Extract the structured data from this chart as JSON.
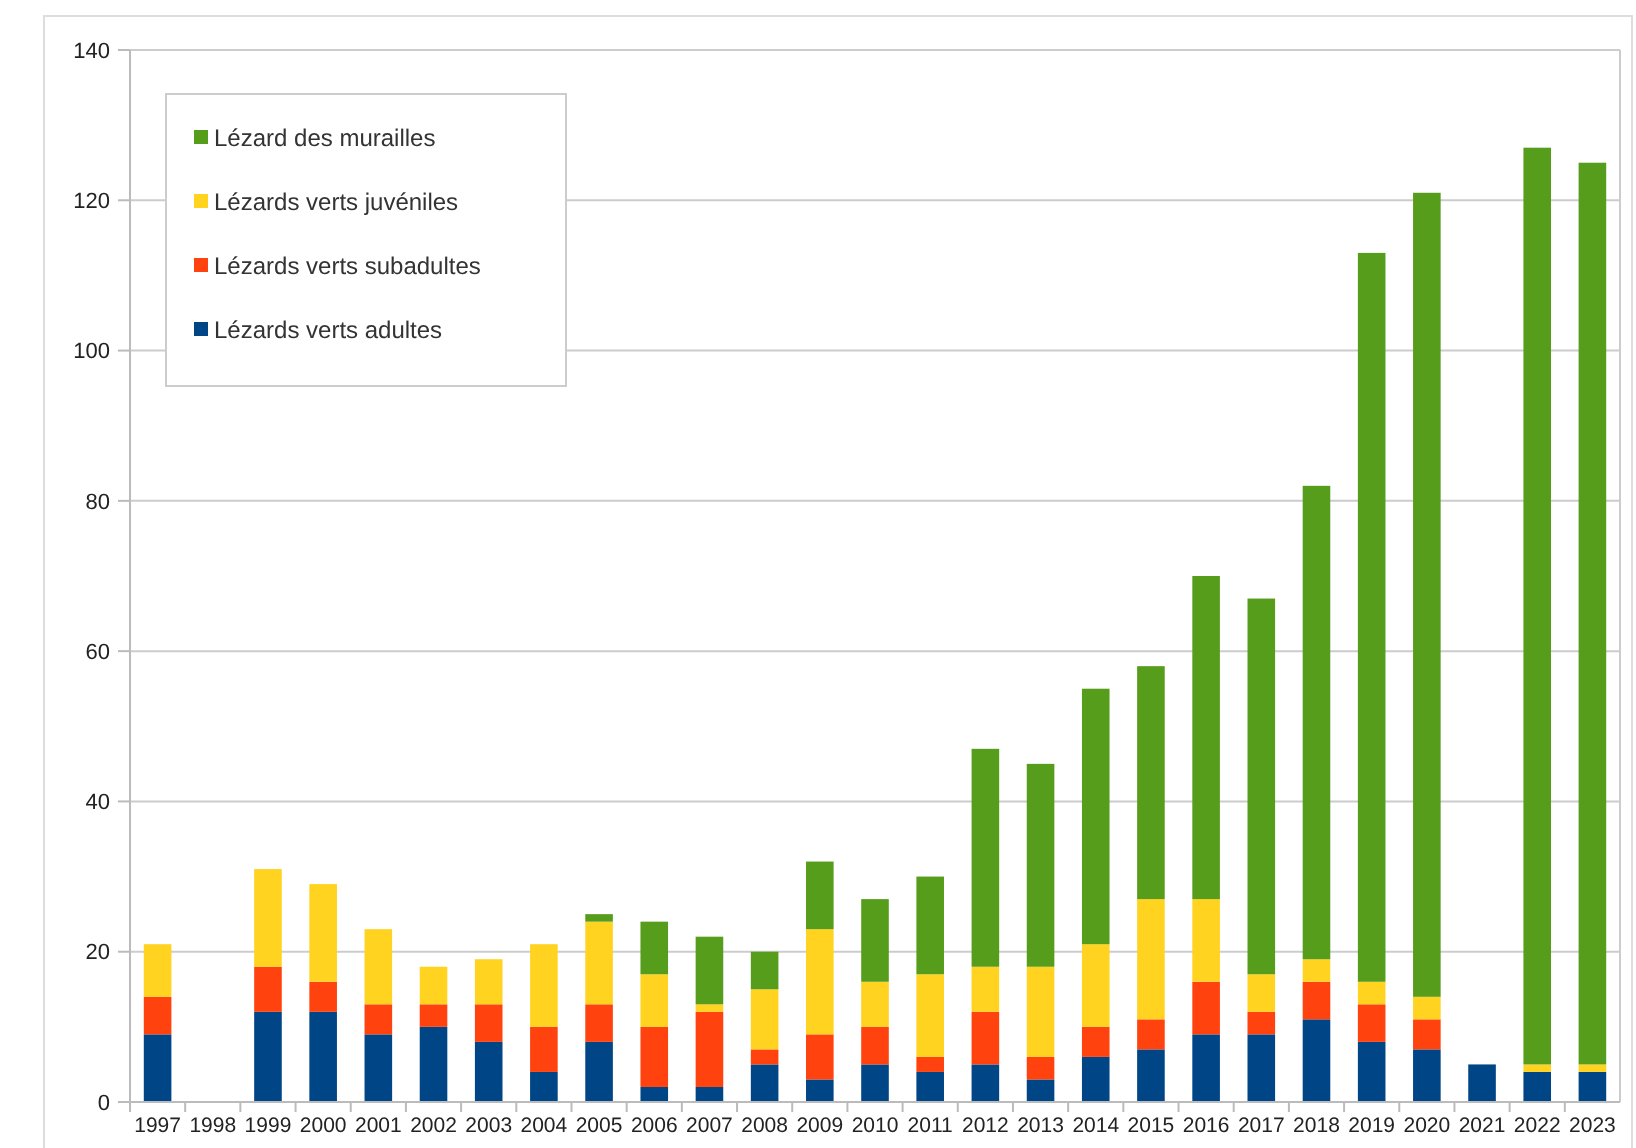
{
  "chart_data": {
    "type": "bar",
    "stacked": true,
    "categories": [
      "1997",
      "1998",
      "1999",
      "2000",
      "2001",
      "2002",
      "2003",
      "2004",
      "2005",
      "2006",
      "2007",
      "2008",
      "2009",
      "2010",
      "2011",
      "2012",
      "2013",
      "2014",
      "2015",
      "2016",
      "2017",
      "2018",
      "2019",
      "2020",
      "2021",
      "2022",
      "2023"
    ],
    "series": [
      {
        "name": "Lézards verts adultes",
        "color": "#004586",
        "values": [
          9,
          0,
          12,
          12,
          9,
          10,
          8,
          4,
          8,
          2,
          2,
          5,
          3,
          5,
          4,
          5,
          3,
          6,
          7,
          9,
          9,
          11,
          8,
          7,
          5,
          4,
          4
        ]
      },
      {
        "name": "Lézards verts subadultes",
        "color": "#ff420e",
        "values": [
          5,
          0,
          6,
          4,
          4,
          3,
          5,
          6,
          5,
          8,
          10,
          2,
          6,
          5,
          2,
          7,
          3,
          4,
          4,
          7,
          3,
          5,
          5,
          4,
          0,
          0,
          0
        ]
      },
      {
        "name": "Lézards verts juvéniles",
        "color": "#ffd320",
        "values": [
          7,
          0,
          13,
          13,
          10,
          5,
          6,
          11,
          11,
          7,
          1,
          8,
          14,
          6,
          11,
          6,
          12,
          11,
          16,
          11,
          5,
          3,
          3,
          3,
          0,
          1,
          1
        ]
      },
      {
        "name": "Lézard des murailles",
        "color": "#579d1c",
        "values": [
          0,
          0,
          0,
          0,
          0,
          0,
          0,
          0,
          1,
          7,
          9,
          5,
          9,
          11,
          13,
          29,
          27,
          34,
          31,
          43,
          50,
          63,
          97,
          107,
          0,
          122,
          120
        ]
      }
    ],
    "ylim": [
      0,
      140
    ],
    "yticks": [
      0,
      20,
      40,
      60,
      80,
      100,
      120,
      140
    ],
    "grid": "y",
    "legend": "top left"
  }
}
